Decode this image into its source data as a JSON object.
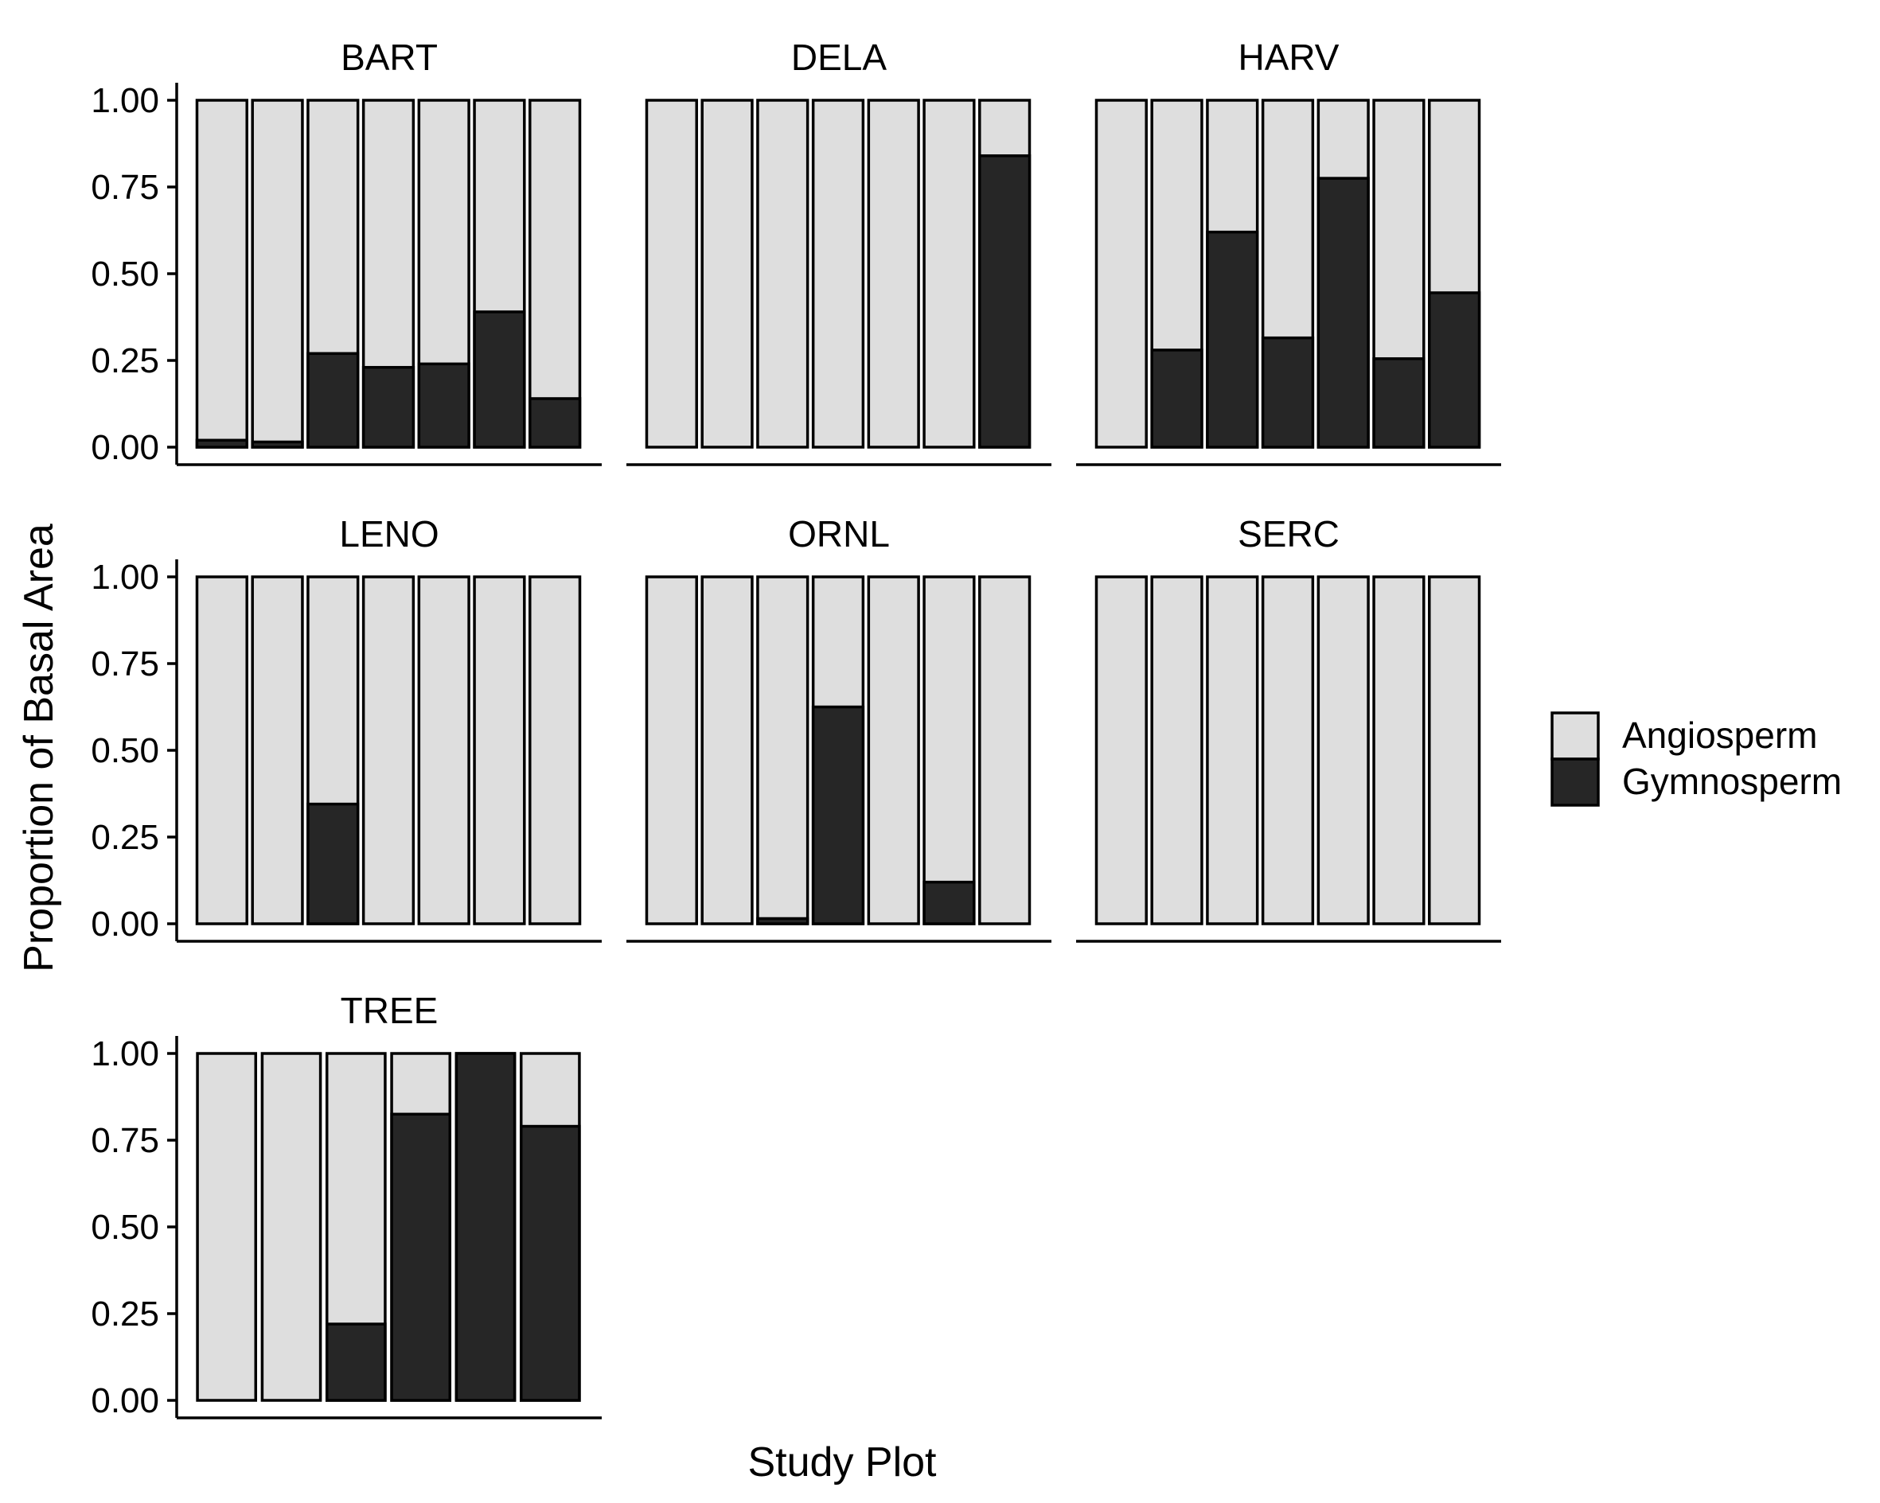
{
  "chart_data": {
    "type": "bar",
    "stacked": true,
    "facets": [
      "BART",
      "DELA",
      "HARV",
      "LENO",
      "ORNL",
      "SERC",
      "TREE"
    ],
    "xlabel": "Study Plot",
    "ylabel": "Proportion of Basal Area",
    "ylim": [
      0,
      1
    ],
    "yticks": [
      "0.00",
      "0.25",
      "0.50",
      "0.75",
      "1.00"
    ],
    "grid": false,
    "legend": {
      "position": "right",
      "entries": [
        {
          "label": "Angiosperm",
          "color": "#dedede"
        },
        {
          "label": "Gymnosperm",
          "color": "#262626"
        }
      ]
    },
    "series": [
      {
        "name": "Angiosperm",
        "color": "#dedede"
      },
      {
        "name": "Gymnosperm",
        "color": "#262626"
      }
    ],
    "panels": [
      {
        "facet": "BART",
        "gymnosperm": [
          0.02,
          0.015,
          0.27,
          0.23,
          0.24,
          0.39,
          0.14
        ]
      },
      {
        "facet": "DELA",
        "gymnosperm": [
          0,
          0,
          0,
          0,
          0,
          0,
          0.84
        ]
      },
      {
        "facet": "HARV",
        "gymnosperm": [
          0,
          0.28,
          0.62,
          0.315,
          0.775,
          0.255,
          0.445
        ]
      },
      {
        "facet": "LENO",
        "gymnosperm": [
          0,
          0,
          0.345,
          0,
          0,
          0,
          0
        ]
      },
      {
        "facet": "ORNL",
        "gymnosperm": [
          0,
          0,
          0.015,
          0.625,
          0,
          0.12,
          0
        ]
      },
      {
        "facet": "SERC",
        "gymnosperm": [
          0,
          0,
          0,
          0,
          0,
          0,
          0
        ]
      },
      {
        "facet": "TREE",
        "gymnosperm": [
          0,
          0,
          0.22,
          0.825,
          1.0,
          0.79
        ]
      }
    ]
  }
}
